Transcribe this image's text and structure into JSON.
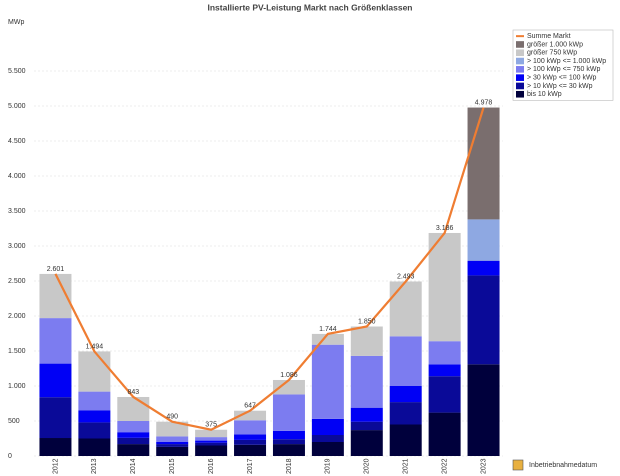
{
  "chart_data": {
    "type": "bar",
    "stacked": true,
    "title": "Installierte PV-Leistung Markt nach Größenklassen",
    "y_label": "MWp",
    "x_label": "Inbetriebnahmedatum",
    "categories": [
      "2012",
      "2013",
      "2014",
      "2015",
      "2016",
      "2017",
      "2018",
      "2019",
      "2020",
      "2021",
      "2022",
      "2023"
    ],
    "ylim": [
      0,
      6000
    ],
    "yticks": [
      0,
      500,
      {
        "value": 1000,
        "label": "1.000"
      },
      {
        "value": 1500,
        "label": "1.500"
      },
      {
        "value": 2000,
        "label": "2.000"
      },
      {
        "value": 2500,
        "label": "2.500"
      },
      {
        "value": 3000,
        "label": "3.000"
      },
      {
        "value": 3500,
        "label": "3.500"
      },
      {
        "value": 4000,
        "label": "4.000"
      },
      {
        "value": 4500,
        "label": "4.500"
      },
      {
        "value": 5000,
        "label": "5.000"
      },
      {
        "value": 5500,
        "label": "5.500"
      }
    ],
    "grid": true,
    "legend": "top-right",
    "series": [
      {
        "name": "bis 10 kWp",
        "color": "#00003c",
        "values": [
          257,
          250,
          170,
          130,
          150,
          160,
          170,
          200,
          370,
          450,
          620,
          1310
        ]
      },
      {
        "name": "> 10 kWp <= 30 kWp",
        "color": "#0a0a98",
        "values": [
          583,
          230,
          90,
          40,
          40,
          70,
          70,
          100,
          120,
          320,
          520,
          1270
        ]
      },
      {
        "name": "> 30 kWp <= 100 kWp",
        "color": "#0000f5",
        "values": [
          480,
          170,
          80,
          30,
          30,
          80,
          120,
          230,
          200,
          230,
          170,
          210
        ]
      },
      {
        "name": "> 100 kWp <= 750 kWp",
        "color": "#7c7cf0",
        "values": [
          650,
          270,
          160,
          80,
          50,
          200,
          520,
          1060,
          740,
          710,
          330,
          0
        ]
      },
      {
        "name": "> 100 kWp <= 1.000 kWp",
        "color": "#8ea8e2",
        "values": [
          0,
          0,
          0,
          0,
          0,
          0,
          0,
          0,
          0,
          0,
          0,
          590
        ]
      },
      {
        "name": "größer 750 kWp",
        "color": "#c8c8c8",
        "values": [
          631,
          574,
          343,
          210,
          105,
          137,
          206,
          154,
          420,
          783,
          1546,
          0
        ]
      },
      {
        "name": "größer 1.000 kWp",
        "color": "#7a6e6e",
        "values": [
          0,
          0,
          0,
          0,
          0,
          0,
          0,
          0,
          0,
          0,
          0,
          1598
        ]
      },
      {
        "name": "Summe Markt",
        "type": "line",
        "color": "#ef7d32",
        "values": [
          2601,
          1494,
          843,
          490,
          375,
          647,
          1086,
          1744,
          1850,
          2493,
          3186,
          4978
        ],
        "value_labels": [
          "2.601",
          "1.494",
          "843",
          "490",
          "375",
          "647",
          "1.086",
          "1.744",
          "1.850",
          "2.493",
          "3.186",
          "4.978"
        ]
      }
    ]
  }
}
